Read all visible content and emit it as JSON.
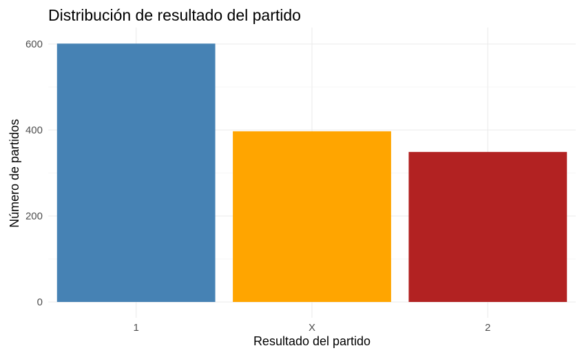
{
  "chart_data": {
    "type": "bar",
    "title": "Distribución de resultado del partido",
    "xlabel": "Resultado del partido",
    "ylabel": "Número de partidos",
    "categories": [
      "1",
      "X",
      "2"
    ],
    "values": [
      601,
      397,
      349
    ],
    "colors": [
      "#4682b4",
      "#ffa500",
      "#b22222"
    ],
    "ylim": [
      0,
      630
    ],
    "yticks": [
      0,
      200,
      400,
      600
    ],
    "grid": true,
    "legend": "none"
  }
}
